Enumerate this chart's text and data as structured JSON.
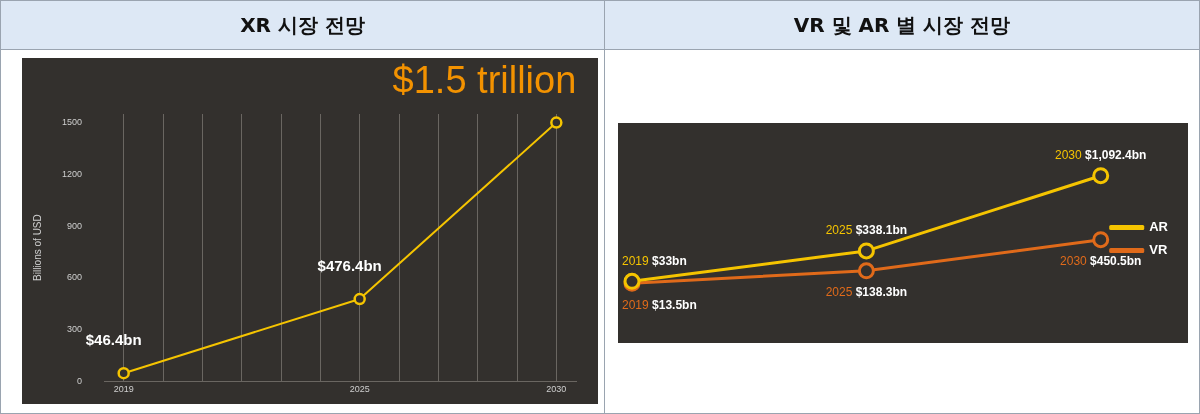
{
  "chart_data": [
    {
      "type": "line",
      "title": "XR 시장 전망",
      "ylabel": "Billions of USD",
      "x": [
        2019,
        2025,
        2030
      ],
      "values": [
        46.4,
        476.4,
        1500
      ],
      "color": "#f5c400",
      "value_labels": [
        "$46.4bn",
        "$476.4bn",
        null
      ],
      "marker": "circle",
      "xlim": [
        2018.5,
        2030.5
      ],
      "xticks": [
        2019,
        {
          "value": 2020,
          "label": null
        },
        {
          "value": 2021,
          "label": null
        },
        {
          "value": 2022,
          "label": null
        },
        {
          "value": 2023,
          "label": null
        },
        {
          "value": 2024,
          "label": null
        },
        2025,
        {
          "value": 2026,
          "label": null
        },
        {
          "value": 2027,
          "label": null
        },
        {
          "value": 2028,
          "label": null
        },
        {
          "value": 2029,
          "label": null
        },
        2030
      ],
      "ylim": [
        0,
        1550
      ],
      "yticks": [
        0,
        300,
        600,
        900,
        1200,
        1500
      ],
      "grid": "x",
      "annotations": [
        {
          "text": "$1.5 trillion",
          "x": 2030,
          "y": 1500
        }
      ]
    },
    {
      "type": "line",
      "title": "VR 및 AR 별 시장 전망",
      "categories": [
        null,
        null,
        null
      ],
      "series": [
        {
          "name": "AR",
          "color": "#f5c400",
          "values": [
            33,
            338.1,
            1092.4
          ],
          "value_labels": [
            "$33bn",
            "$338.1bn",
            "$1,092.4bn"
          ]
        },
        {
          "name": "VR",
          "color": "#e06a1a",
          "values": [
            13.5,
            138.3,
            450.5
          ],
          "value_labels": [
            "$13.5bn",
            "$138.3bn",
            "$450.5bn"
          ]
        }
      ],
      "annotations": [
        "2019",
        "2025",
        "2030",
        "2019",
        "2025",
        "2030"
      ],
      "marker": "circle",
      "legend": "right"
    }
  ]
}
